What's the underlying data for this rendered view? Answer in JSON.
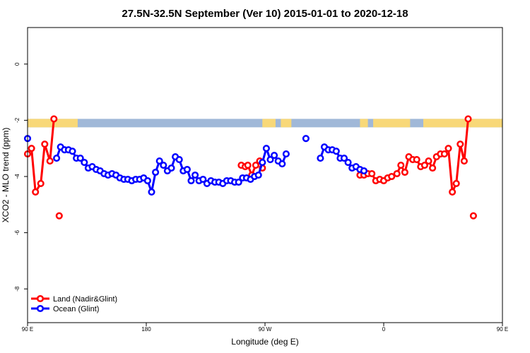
{
  "chart_data": {
    "type": "line",
    "title": "27.5N-32.5N September (Ver 10)   2015-01-01 to 2020-12-18",
    "xlabel": "Longitude (deg E)",
    "ylabel": "XCO2 - MLO trend (ppm)",
    "xlim": [
      90,
      450
    ],
    "ylim": [
      -9.2,
      1.3
    ],
    "x_ticks": [
      {
        "value": 90,
        "label": "90 E"
      },
      {
        "value": 180,
        "label": "180"
      },
      {
        "value": 270,
        "label": "90 W"
      },
      {
        "value": 360,
        "label": "0"
      },
      {
        "value": 450,
        "label": "90 E"
      },
      {
        "value": 540,
        "label": "180"
      }
    ],
    "y_ticks": [
      {
        "value": 0,
        "label": "0"
      },
      {
        "value": -2,
        "label": "-2"
      },
      {
        "value": -4,
        "label": "-4"
      },
      {
        "value": -6,
        "label": "-6"
      },
      {
        "value": -8,
        "label": "-8"
      }
    ],
    "grid": false,
    "legend_position": "bottom-left",
    "surface_strip": {
      "y_range": [
        -2.25,
        -1.95
      ],
      "ocean_color": "#a0b8d8",
      "land_color": "#f8d878",
      "land_segments": [
        [
          90,
          128
        ],
        [
          268,
          278
        ],
        [
          282,
          290
        ],
        [
          342,
          348
        ],
        [
          352,
          380
        ],
        [
          390,
          468
        ],
        [
          482,
          496
        ],
        [
          498,
          558
        ],
        [
          642,
          660
        ]
      ]
    },
    "series": [
      {
        "name": "Land (Nadir&Glint)",
        "color": "#ff0000",
        "points": [
          [
            90,
            -3.2
          ],
          [
            93,
            -3.0
          ],
          [
            96,
            -4.55
          ],
          [
            100,
            -4.25
          ],
          [
            103,
            -2.85
          ],
          [
            107,
            -3.45
          ],
          [
            110,
            -1.95
          ],
          [
            112,
            null
          ],
          [
            114,
            -5.4
          ],
          [
            200,
            null
          ],
          [
            252,
            -3.6
          ],
          [
            255,
            -3.65
          ],
          [
            257,
            -3.6
          ],
          [
            260,
            -3.95
          ],
          [
            263,
            -3.6
          ],
          [
            266,
            -3.45
          ],
          [
            268,
            -3.7
          ],
          [
            270,
            null
          ],
          [
            342,
            -3.95
          ],
          [
            345,
            -3.95
          ],
          [
            348,
            -3.9
          ],
          [
            351,
            -3.9
          ],
          [
            354,
            -4.15
          ],
          [
            357,
            -4.1
          ],
          [
            360,
            -4.15
          ],
          [
            363,
            -4.05
          ],
          [
            366,
            -4.0
          ],
          [
            370,
            -3.9
          ],
          [
            373,
            -3.6
          ],
          [
            376,
            -3.85
          ],
          [
            379,
            -3.3
          ],
          [
            382,
            -3.4
          ],
          [
            385,
            -3.4
          ],
          [
            388,
            -3.65
          ],
          [
            391,
            -3.6
          ],
          [
            394,
            -3.45
          ],
          [
            397,
            -3.7
          ],
          [
            400,
            -3.3
          ],
          [
            403,
            -3.2
          ],
          [
            406,
            -3.2
          ],
          [
            409,
            -3.0
          ],
          [
            412,
            -4.55
          ],
          [
            415,
            -4.25
          ],
          [
            418,
            -2.85
          ],
          [
            421,
            -3.45
          ],
          [
            424,
            -1.95
          ],
          [
            426,
            null
          ],
          [
            428,
            -5.4
          ]
        ]
      },
      {
        "name": "Ocean (Glint)",
        "color": "#0000ff",
        "points": [
          [
            90,
            -2.65
          ],
          [
            92,
            null
          ],
          [
            112,
            -3.35
          ],
          [
            115,
            -2.95
          ],
          [
            118,
            -3.05
          ],
          [
            121,
            -3.05
          ],
          [
            124,
            -3.1
          ],
          [
            127,
            -3.35
          ],
          [
            130,
            -3.35
          ],
          [
            133,
            -3.5
          ],
          [
            136,
            -3.7
          ],
          [
            139,
            -3.65
          ],
          [
            142,
            -3.75
          ],
          [
            145,
            -3.8
          ],
          [
            148,
            -3.9
          ],
          [
            151,
            -3.95
          ],
          [
            154,
            -3.9
          ],
          [
            157,
            -3.95
          ],
          [
            160,
            -4.05
          ],
          [
            163,
            -4.1
          ],
          [
            166,
            -4.1
          ],
          [
            169,
            -4.15
          ],
          [
            172,
            -4.1
          ],
          [
            175,
            -4.1
          ],
          [
            178,
            -4.05
          ],
          [
            181,
            -4.15
          ],
          [
            184,
            -4.55
          ],
          [
            187,
            -3.85
          ],
          [
            190,
            -3.45
          ],
          [
            193,
            -3.6
          ],
          [
            196,
            -3.8
          ],
          [
            199,
            -3.7
          ],
          [
            202,
            -3.3
          ],
          [
            205,
            -3.4
          ],
          [
            208,
            -3.8
          ],
          [
            211,
            -3.75
          ],
          [
            214,
            -4.15
          ],
          [
            217,
            -3.95
          ],
          [
            220,
            -4.15
          ],
          [
            223,
            -4.1
          ],
          [
            226,
            -4.25
          ],
          [
            229,
            -4.15
          ],
          [
            232,
            -4.2
          ],
          [
            235,
            -4.2
          ],
          [
            238,
            -4.25
          ],
          [
            241,
            -4.15
          ],
          [
            244,
            -4.15
          ],
          [
            247,
            -4.2
          ],
          [
            250,
            -4.2
          ],
          [
            253,
            -4.05
          ],
          [
            256,
            -4.05
          ],
          [
            259,
            -4.1
          ],
          [
            262,
            -4.0
          ],
          [
            265,
            -3.95
          ],
          [
            268,
            -3.5
          ],
          [
            271,
            -3.0
          ],
          [
            274,
            -3.4
          ],
          [
            277,
            -3.25
          ],
          [
            280,
            -3.45
          ],
          [
            283,
            -3.55
          ],
          [
            286,
            -3.2
          ],
          [
            290,
            null
          ],
          [
            301,
            -2.65
          ],
          [
            303,
            null
          ],
          [
            312,
            -3.35
          ],
          [
            315,
            -2.95
          ],
          [
            318,
            -3.05
          ],
          [
            321,
            -3.05
          ],
          [
            324,
            -3.1
          ],
          [
            327,
            -3.35
          ],
          [
            330,
            -3.35
          ],
          [
            333,
            -3.5
          ],
          [
            336,
            -3.7
          ],
          [
            339,
            -3.65
          ],
          [
            342,
            -3.75
          ],
          [
            345,
            -3.8
          ]
        ]
      }
    ]
  }
}
